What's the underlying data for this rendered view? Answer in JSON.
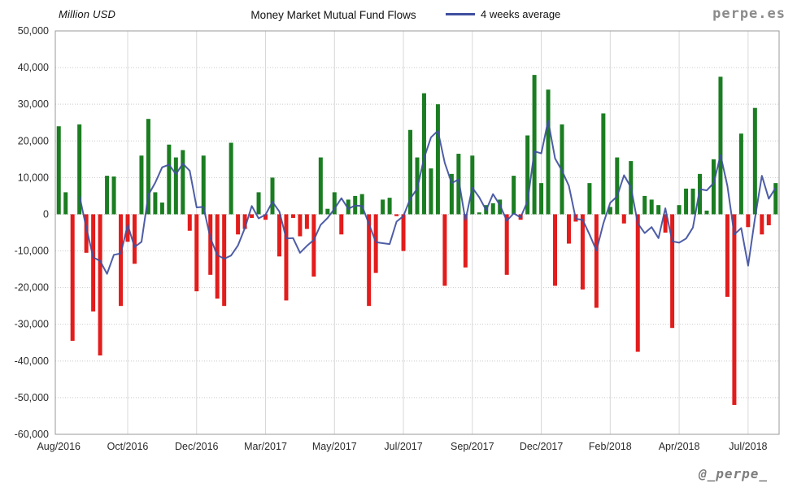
{
  "header": {
    "units_label": "Million USD",
    "title": "Money Market Mutual Fund Flows",
    "legend_label": "4 weeks average",
    "brand": "perpe.es"
  },
  "footer": {
    "handle": "@_perpe_"
  },
  "chart_data": {
    "type": "bar",
    "title": "Money Market Mutual Fund Flows",
    "ylabel": "Million USD",
    "legend_entries": [
      "4 weeks average"
    ],
    "legend_position": "top",
    "grid": true,
    "ylim": [
      -60000,
      50000
    ],
    "y_ticks": [
      50000,
      40000,
      30000,
      20000,
      10000,
      0,
      -10000,
      -20000,
      -30000,
      -40000,
      -50000,
      -60000
    ],
    "x_tick_labels": [
      "Aug/2016",
      "Oct/2016",
      "Dec/2016",
      "Mar/2017",
      "May/2017",
      "Jul/2017",
      "Sep/2017",
      "Dec/2017",
      "Feb/2018",
      "Apr/2018",
      "Jul/2018"
    ],
    "x_tick_every_n_bars": 10,
    "bar_period": "weekly",
    "values": [
      24000,
      6000,
      -34500,
      24500,
      -10500,
      -26500,
      -38500,
      10500,
      10300,
      -25000,
      -7500,
      -13500,
      16000,
      26000,
      6000,
      3200,
      19000,
      15500,
      17500,
      -4500,
      -21000,
      16000,
      -16500,
      -23000,
      -25000,
      19500,
      -5500,
      -4000,
      -1000,
      6000,
      -1500,
      10000,
      -11500,
      -23500,
      -1000,
      -6000,
      -4000,
      -17000,
      15500,
      1500,
      6000,
      -5500,
      4000,
      5000,
      5500,
      -25000,
      -16000,
      4000,
      4500,
      -500,
      -10000,
      23000,
      15500,
      33000,
      12500,
      30000,
      -19500,
      11000,
      16500,
      -14500,
      16000,
      500,
      2500,
      3000,
      4000,
      -16500,
      10500,
      -1500,
      21500,
      38000,
      8500,
      34000,
      -19500,
      24500,
      -8000,
      -2000,
      -20500,
      8500,
      -25500,
      27500,
      2000,
      15500,
      -2500,
      14500,
      -37500,
      5000,
      4000,
      2500,
      -5000,
      -31000,
      2500,
      7000,
      7000,
      11000,
      1000,
      15000,
      37500,
      -22500,
      -52000,
      22000,
      -3500,
      29000,
      -5500,
      -3000,
      8500
    ],
    "line_series": {
      "name": "4 weeks average",
      "derived": "4-week trailing moving average of weekly values, drawn from week 4 onward"
    },
    "colors": {
      "bar_positive": "#1b7d21",
      "bar_negative": "#e31c1c",
      "average_line": "#3f4fa0",
      "grid_line": "#c9c9c9",
      "plot_border": "#9a9a9a",
      "tick_text": "#2a2a2a"
    }
  }
}
